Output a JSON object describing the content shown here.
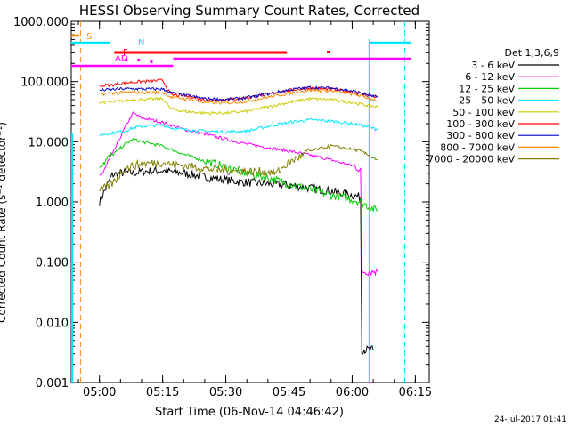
{
  "chart_data": {
    "type": "line",
    "title": "HESSI Observing Summary Count Rates, Corrected",
    "xlabel": "Start Time (06-Nov-14 04:46:42)",
    "ylabel": "Corrected Count Rate (s⁻¹ detector⁻¹)",
    "y_scale": "log",
    "ylim": [
      0.001,
      1000
    ],
    "xlim_min": [
      -6.7,
      78.3
    ],
    "x_unit": "minutes after 05:00 UT",
    "x_ticks": [
      {
        "v": 0,
        "label": "05:00"
      },
      {
        "v": 15,
        "label": "05:15"
      },
      {
        "v": 30,
        "label": "05:30"
      },
      {
        "v": 45,
        "label": "05:45"
      },
      {
        "v": 60,
        "label": "06:00"
      },
      {
        "v": 75,
        "label": "06:15"
      }
    ],
    "y_ticks": [
      {
        "v": 1000,
        "label": "1000.000"
      },
      {
        "v": 100,
        "label": "100.000"
      },
      {
        "v": 10,
        "label": "10.000"
      },
      {
        "v": 1,
        "label": "1.000"
      },
      {
        "v": 0.1,
        "label": "0.100"
      },
      {
        "v": 0.01,
        "label": "0.010"
      },
      {
        "v": 0.001,
        "label": "0.001"
      }
    ],
    "legend_title": "Det 1,3,6,9",
    "legend_position": "right",
    "series": [
      {
        "name": "3 - 6 keV",
        "color": "#000000",
        "x": [
          0,
          3,
          6,
          8,
          10,
          15,
          20,
          25,
          30,
          35,
          40,
          45,
          50,
          55,
          60,
          62,
          62.3,
          65
        ],
        "y": [
          1.0,
          2.8,
          3.1,
          3.0,
          3.2,
          3.3,
          3.0,
          2.6,
          2.3,
          2.1,
          2.0,
          1.9,
          1.7,
          1.5,
          1.3,
          1.2,
          0.0035,
          0.0035
        ]
      },
      {
        "name": "6 - 12 keV",
        "color": "#ff00ff",
        "x": [
          0,
          3,
          6,
          8,
          10,
          15,
          20,
          25,
          30,
          35,
          40,
          45,
          50,
          55,
          60,
          62,
          62.3,
          66
        ],
        "y": [
          2.5,
          6,
          17,
          30,
          25,
          21,
          16,
          13.5,
          11,
          9.2,
          8,
          7,
          6,
          5,
          4,
          3.5,
          0.07,
          0.07
        ]
      },
      {
        "name": "12 - 25 keV",
        "color": "#00cc00",
        "x": [
          0,
          3,
          6,
          8,
          10,
          15,
          20,
          25,
          30,
          35,
          40,
          45,
          50,
          55,
          60,
          62,
          66
        ],
        "y": [
          4,
          6,
          9,
          11,
          10,
          8.5,
          6.2,
          4.8,
          3.8,
          3.0,
          2.5,
          2.0,
          1.6,
          1.3,
          1.1,
          1.0,
          0.7
        ]
      },
      {
        "name": "25 - 50 keV",
        "color": "#00e5ff",
        "x": [
          0,
          3,
          6,
          8,
          10,
          15,
          17,
          20,
          25,
          30,
          35,
          40,
          45,
          50,
          55,
          60,
          62,
          66
        ],
        "y": [
          13,
          14,
          15,
          17,
          18,
          19,
          17,
          16,
          15,
          14.5,
          15,
          18,
          21,
          23,
          22,
          20,
          19,
          16
        ]
      },
      {
        "name": "50 - 100 keV",
        "color": "#cccc00",
        "x": [
          0,
          3,
          6,
          8,
          10,
          15,
          17,
          20,
          25,
          30,
          35,
          40,
          45,
          50,
          55,
          60,
          62,
          66
        ],
        "y": [
          45,
          46,
          48,
          50,
          50,
          52,
          35,
          32,
          30,
          30,
          32,
          38,
          45,
          52,
          50,
          45,
          42,
          38
        ]
      },
      {
        "name": "100 - 300 keV",
        "color": "#ff0000",
        "x": [
          0,
          3,
          6,
          8,
          10,
          15,
          17,
          20,
          25,
          30,
          35,
          40,
          45,
          50,
          55,
          60,
          62,
          66
        ],
        "y": [
          85,
          88,
          95,
          98,
          100,
          105,
          60,
          58,
          50,
          50,
          54,
          62,
          72,
          78,
          75,
          68,
          62,
          55
        ]
      },
      {
        "name": "300 - 800 keV",
        "color": "#0000cc",
        "x": [
          0,
          3,
          6,
          8,
          10,
          15,
          17,
          20,
          25,
          30,
          35,
          40,
          45,
          50,
          55,
          60,
          62,
          66
        ],
        "y": [
          72,
          74,
          76,
          76,
          75,
          75,
          65,
          60,
          52,
          50,
          54,
          62,
          73,
          80,
          78,
          70,
          65,
          55
        ]
      },
      {
        "name": "800 - 7000 keV",
        "color": "#ff8800",
        "x": [
          0,
          3,
          6,
          8,
          10,
          15,
          17,
          20,
          25,
          30,
          35,
          40,
          45,
          50,
          55,
          60,
          62,
          66
        ],
        "y": [
          62,
          64,
          66,
          66,
          66,
          66,
          55,
          52,
          45,
          44,
          47,
          55,
          64,
          72,
          70,
          62,
          58,
          48
        ]
      },
      {
        "name": "7000 - 20000 keV",
        "color": "#808000",
        "x": [
          0,
          3,
          6,
          8,
          10,
          15,
          17,
          20,
          25,
          30,
          35,
          40,
          42,
          45,
          50,
          55,
          60,
          62,
          66
        ],
        "y": [
          1.5,
          2,
          3.5,
          4,
          4.3,
          4.5,
          4.2,
          4,
          3.6,
          3.3,
          3.2,
          3.2,
          3.0,
          4.5,
          7,
          8.5,
          7.5,
          7,
          5
        ]
      }
    ],
    "markers": {
      "S": {
        "label": "S",
        "color": "#ff8800"
      },
      "N": {
        "label": "N",
        "color": "#00e5ff"
      },
      "F": {
        "label": "F",
        "color": "#ff0000"
      },
      "AD": {
        "label": "AD",
        "color": "#ff00ff"
      }
    }
  },
  "footer": {
    "timestamp": "24-Jul-2017 01:41"
  }
}
